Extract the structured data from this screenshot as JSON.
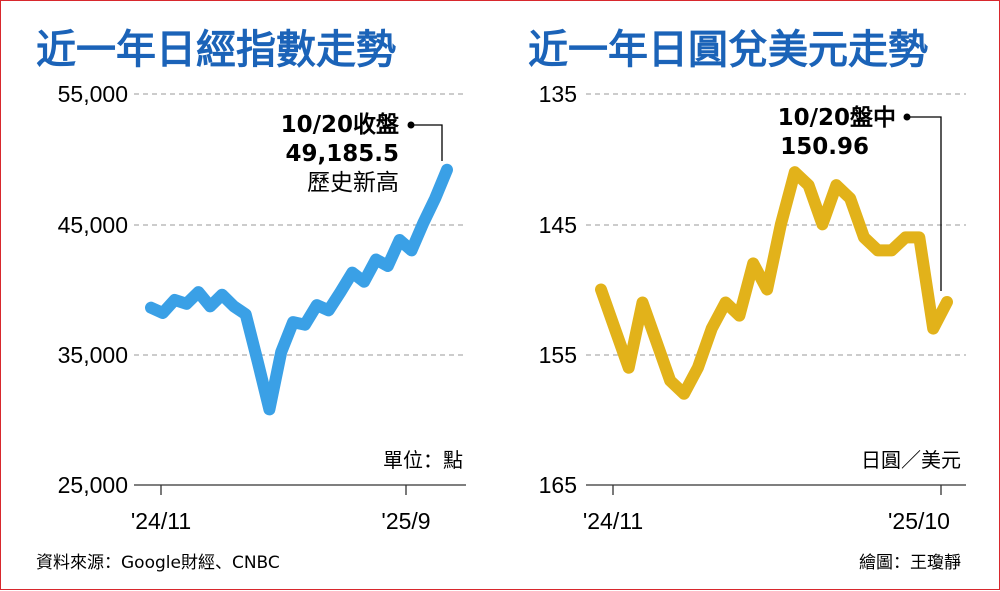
{
  "chart_data": [
    {
      "type": "line",
      "title": "近一年日經指數走勢",
      "unit_label": "單位：點",
      "y_ticks": [
        "55,000",
        "45,000",
        "35,000",
        "25,000"
      ],
      "ylim": [
        25000,
        55000
      ],
      "x_labels": [
        "'24/11",
        "'25/9"
      ],
      "annotation": {
        "date": "10/20收盤",
        "value": "49,185.5",
        "note": "歷史新高"
      },
      "color": "#3aa0e6",
      "series": [
        {
          "x": [
            0,
            2,
            4,
            6,
            8,
            10,
            12,
            14,
            16,
            18,
            20,
            22,
            24,
            26,
            28,
            30,
            32,
            34,
            36,
            38,
            40,
            42,
            44,
            46,
            48,
            50
          ],
          "values": [
            38600,
            38200,
            39200,
            38900,
            39800,
            38700,
            39600,
            38700,
            38100,
            34500,
            30800,
            35200,
            37500,
            37300,
            38800,
            38400,
            39800,
            41300,
            40600,
            42300,
            41800,
            43800,
            43000,
            45100,
            47000,
            49185.5
          ]
        }
      ]
    },
    {
      "type": "line",
      "title": "近一年日圓兌美元走勢",
      "unit_label": "日圓／美元",
      "y_ticks": [
        "135",
        "145",
        "155",
        "165"
      ],
      "ylim": [
        135,
        165
      ],
      "y_reversed": true,
      "x_labels": [
        "'24/11",
        "'25/10"
      ],
      "annotation": {
        "date": "10/20盤中",
        "value": "150.96"
      },
      "color": "#e2b21a",
      "series": [
        {
          "x": [
            0,
            2,
            4,
            6,
            8,
            10,
            12,
            14,
            16,
            18,
            20,
            22,
            24,
            26,
            28,
            30,
            32,
            34,
            36,
            38,
            40,
            42,
            44,
            46,
            48,
            50
          ],
          "values": [
            150,
            153,
            156,
            151,
            154,
            157,
            158,
            156,
            153,
            151,
            152,
            148,
            150,
            145,
            141,
            142,
            145,
            142,
            143,
            146,
            147,
            147,
            146,
            146,
            153,
            150.96
          ]
        }
      ]
    }
  ],
  "footer": {
    "source": "資料來源：Google財經、CNBC",
    "credit": "繪圖：王瓊靜"
  }
}
